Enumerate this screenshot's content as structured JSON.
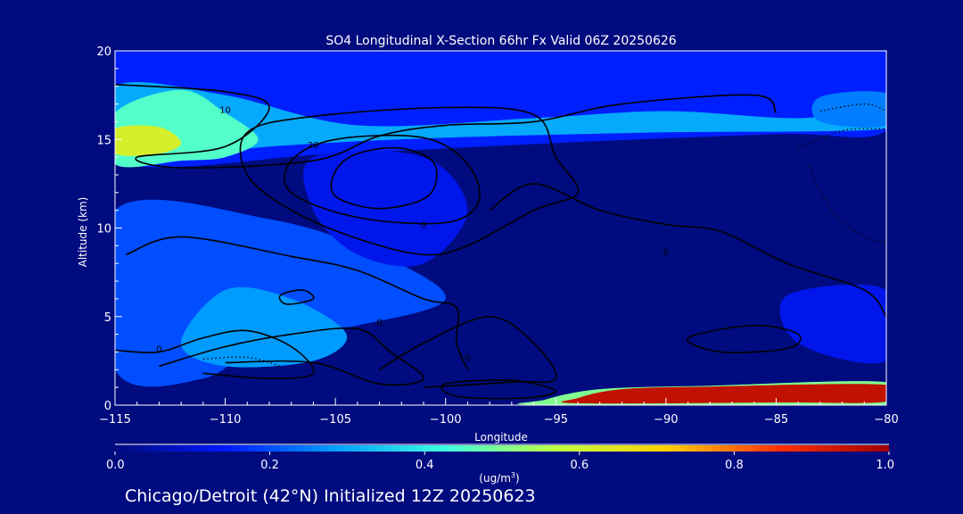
{
  "chart_data": {
    "type": "heatmap",
    "title": "SO4 Longitudinal X-Section 66hr  Fx Valid 06Z 20250626",
    "xlabel": "Longitude",
    "ylabel": "Altitude (km)",
    "xlim": [
      -115,
      -80
    ],
    "ylim": [
      0,
      20
    ],
    "x_ticks": [
      -115,
      -110,
      -105,
      -100,
      -95,
      -90,
      -85,
      -80
    ],
    "x_tick_labels": [
      "−115",
      "−110",
      "−105",
      "−100",
      "−95",
      "−90",
      "−85",
      "−80"
    ],
    "y_ticks": [
      0,
      5,
      10,
      15,
      20
    ],
    "y_tick_labels": [
      "0",
      "5",
      "10",
      "15",
      "20"
    ],
    "colorbar": {
      "min": 0.0,
      "max": 1.0,
      "ticks": [
        0.0,
        0.2,
        0.4,
        0.6,
        0.8,
        1.0
      ],
      "tick_labels": [
        "0.0",
        "0.2",
        "0.4",
        "0.6",
        "0.8",
        "1.0"
      ],
      "units_label": "(ug/m",
      "units_superscript": "3",
      "units_close": ")",
      "colors": [
        "#000b7f",
        "#0018ff",
        "#00a0ff",
        "#40ffe0",
        "#c0ff40",
        "#ffd000",
        "#ff3000",
        "#a00000"
      ]
    },
    "filled_regions": [
      {
        "name": "upper-band",
        "value": 0.15,
        "points": [
          [
            -115,
            20
          ],
          [
            -80,
            20
          ],
          [
            -80,
            15.5
          ],
          [
            -85,
            15.3
          ],
          [
            -95,
            14.8
          ],
          [
            -105,
            14.2
          ],
          [
            -115,
            13.8
          ]
        ]
      },
      {
        "name": "upper-jet",
        "value": 0.3,
        "points": [
          [
            -115,
            18
          ],
          [
            -110,
            17.5
          ],
          [
            -104,
            15.8
          ],
          [
            -96,
            16.2
          ],
          [
            -90,
            16.6
          ],
          [
            -84,
            16.2
          ],
          [
            -80,
            16.8
          ],
          [
            -80,
            15.6
          ],
          [
            -90,
            15.4
          ],
          [
            -100,
            15.1
          ],
          [
            -108,
            14.6
          ],
          [
            -115,
            13.8
          ]
        ]
      },
      {
        "name": "left-plume",
        "value": 0.45,
        "points": [
          [
            -115,
            16.5
          ],
          [
            -112,
            17.8
          ],
          [
            -110,
            16.5
          ],
          [
            -108.5,
            15
          ],
          [
            -110,
            14
          ],
          [
            -112,
            13.8
          ],
          [
            -115,
            13.6
          ]
        ]
      },
      {
        "name": "left-core",
        "value": 0.62,
        "points": [
          [
            -115,
            15.6
          ],
          [
            -113,
            15.7
          ],
          [
            -112,
            14.8
          ],
          [
            -113,
            14.2
          ],
          [
            -115,
            14.2
          ]
        ]
      },
      {
        "name": "right-upper",
        "value": 0.25,
        "points": [
          [
            -83,
            17.4
          ],
          [
            -80,
            17.6
          ],
          [
            -80,
            15.8
          ],
          [
            -83,
            16
          ]
        ]
      },
      {
        "name": "mid-tropo-left",
        "value": 0.2,
        "points": [
          [
            -115,
            11
          ],
          [
            -108,
            10.5
          ],
          [
            -103,
            8.5
          ],
          [
            -100,
            6
          ],
          [
            -104,
            4.5
          ],
          [
            -108,
            3.8
          ],
          [
            -111,
            1.5
          ],
          [
            -115,
            2
          ]
        ]
      },
      {
        "name": "low-left",
        "value": 0.28,
        "points": [
          [
            -110,
            6.5
          ],
          [
            -107,
            6
          ],
          [
            -104.5,
            4
          ],
          [
            -106,
            2.5
          ],
          [
            -110,
            2.2
          ],
          [
            -112,
            3.5
          ]
        ]
      },
      {
        "name": "center-column",
        "value": 0.12,
        "points": [
          [
            -106,
            14
          ],
          [
            -101,
            14
          ],
          [
            -99,
            11
          ],
          [
            -101,
            8
          ],
          [
            -104,
            8.5
          ],
          [
            -106,
            11
          ]
        ]
      },
      {
        "name": "right-lower",
        "value": 0.12,
        "points": [
          [
            -84.5,
            6.2
          ],
          [
            -80,
            6.5
          ],
          [
            -80,
            2.5
          ],
          [
            -84,
            3.5
          ]
        ]
      },
      {
        "name": "surface-layer-low",
        "value": 0.5,
        "points": [
          [
            -95.5,
            0.3
          ],
          [
            -93,
            0.9
          ],
          [
            -88,
            1.1
          ],
          [
            -80,
            1.3
          ],
          [
            -80,
            0
          ],
          [
            -95.5,
            0
          ]
        ]
      },
      {
        "name": "surface-layer-high",
        "value": 0.95,
        "points": [
          [
            -94,
            0.4
          ],
          [
            -92,
            0.9
          ],
          [
            -88,
            1.05
          ],
          [
            -80,
            1.15
          ],
          [
            -80,
            0.2
          ],
          [
            -85,
            0.15
          ],
          [
            -94,
            0.1
          ]
        ]
      }
    ],
    "contours": [
      {
        "label": "0",
        "label_at": [
          -101,
          10
        ],
        "points": [
          [
            -115,
            18.1
          ],
          [
            -110,
            17.7
          ],
          [
            -108,
            16.8
          ],
          [
            -110,
            14.6
          ],
          [
            -114,
            14.0
          ],
          [
            -112,
            13.4
          ],
          [
            -106,
            13.8
          ],
          [
            -103,
            15.2
          ],
          [
            -100,
            15.8
          ],
          [
            -96,
            16.0
          ],
          [
            -92,
            17.0
          ],
          [
            -86,
            17.5
          ],
          [
            -85,
            16.5
          ]
        ]
      },
      {
        "label": "10",
        "label_at": [
          -110,
          16.5
        ],
        "points": [
          [
            -109,
            15.4
          ],
          [
            -106,
            16.3
          ],
          [
            -100,
            16.8
          ],
          [
            -96,
            16.4
          ],
          [
            -95,
            14.0
          ],
          [
            -94,
            12.0
          ],
          [
            -96,
            11.0
          ],
          [
            -99,
            9.0
          ],
          [
            -101,
            8.5
          ],
          [
            -104,
            9.4
          ],
          [
            -107,
            11.0
          ],
          [
            -109,
            13.0
          ],
          [
            -109,
            15.4
          ]
        ]
      },
      {
        "label": "20",
        "label_at": [
          -106,
          14.5
        ],
        "points": [
          [
            -107,
            13.8
          ],
          [
            -105,
            15.0
          ],
          [
            -101,
            15.1
          ],
          [
            -99,
            13.6
          ],
          [
            -98.5,
            11.5
          ],
          [
            -100,
            10.3
          ],
          [
            -104,
            10.6
          ],
          [
            -107,
            12.0
          ],
          [
            -107,
            13.8
          ]
        ]
      },
      {
        "label": "",
        "label_at": [
          -103,
          14.3
        ],
        "points": [
          [
            -105,
            13.2
          ],
          [
            -104,
            14.2
          ],
          [
            -102,
            14.5
          ],
          [
            -100.5,
            13.6
          ],
          [
            -100.8,
            11.8
          ],
          [
            -103,
            11.1
          ],
          [
            -105,
            11.8
          ],
          [
            -105,
            13.2
          ]
        ]
      },
      {
        "label": "0",
        "label_at": [
          -90,
          8.5
        ],
        "points": [
          [
            -98,
            11.0
          ],
          [
            -96,
            12.5
          ],
          [
            -93,
            11.0
          ],
          [
            -90,
            10.2
          ],
          [
            -87.5,
            9.8
          ],
          [
            -84.5,
            8.0
          ],
          [
            -81,
            6.5
          ],
          [
            -80,
            5.0
          ]
        ]
      },
      {
        "label": "0",
        "label_at": [
          -103,
          4.5
        ],
        "points": [
          [
            -113,
            2.2
          ],
          [
            -110,
            3.3
          ],
          [
            -107,
            4.0
          ],
          [
            -104,
            4.3
          ],
          [
            -102.5,
            3.0
          ],
          [
            -101,
            1.5
          ],
          [
            -103,
            1.2
          ],
          [
            -106,
            2.4
          ],
          [
            -110,
            2.4
          ]
        ]
      },
      {
        "label": "0",
        "label_at": [
          -113,
          3
        ],
        "points": [
          [
            -115,
            3.1
          ],
          [
            -113,
            3.0
          ],
          [
            -111,
            3.8
          ],
          [
            -109,
            4.2
          ],
          [
            -107,
            3.3
          ],
          [
            -106,
            1.8
          ],
          [
            -108,
            1.5
          ],
          [
            -111,
            1.8
          ]
        ]
      },
      {
        "label": "",
        "label_at": [
          -97,
          0.9
        ],
        "points": [
          [
            -100,
            1.2
          ],
          [
            -97,
            1.4
          ],
          [
            -95,
            0.8
          ],
          [
            -96.5,
            0.4
          ],
          [
            -99.5,
            0.5
          ],
          [
            -100,
            1.2
          ]
        ]
      },
      {
        "label": "0",
        "label_at": [
          -99,
          2.5
        ],
        "points": [
          [
            -103,
            2.0
          ],
          [
            -101,
            3.5
          ],
          [
            -98,
            5.0
          ],
          [
            -96,
            3.5
          ],
          [
            -95,
            1.5
          ],
          [
            -97,
            1.3
          ],
          [
            -101,
            1.0
          ]
        ]
      },
      {
        "label": "",
        "label_at": [
          -106,
          5.7
        ],
        "points": [
          [
            -107.5,
            6.2
          ],
          [
            -106.5,
            6.5
          ],
          [
            -106,
            6.0
          ],
          [
            -107.2,
            5.7
          ],
          [
            -107.5,
            6.2
          ]
        ]
      },
      {
        "label": "",
        "label_at": [
          -86,
          5
        ],
        "points": [
          [
            -89,
            3.8
          ],
          [
            -86,
            4.5
          ],
          [
            -84,
            4.0
          ],
          [
            -84.5,
            3.2
          ],
          [
            -87.5,
            3.0
          ],
          [
            -89,
            3.8
          ]
        ]
      },
      {
        "label": "",
        "label_at": [
          -113,
          8
        ],
        "points": [
          [
            -114.5,
            8.5
          ],
          [
            -112,
            9.5
          ],
          [
            -107,
            8.4
          ],
          [
            -104,
            7.6
          ],
          [
            -101,
            6.0
          ],
          [
            -99.5,
            5.5
          ],
          [
            -99.5,
            3.5
          ],
          [
            -99,
            2.0
          ]
        ]
      }
    ],
    "dotted_contours": [
      {
        "points": [
          [
            -83,
            16.6
          ],
          [
            -81,
            17.0
          ],
          [
            -80,
            16.6
          ]
        ]
      },
      {
        "points": [
          [
            -84,
            14.5
          ],
          [
            -82,
            15.5
          ],
          [
            -80,
            15.6
          ]
        ]
      },
      {
        "points": [
          [
            -83.5,
            13.5
          ],
          [
            -82.5,
            11
          ],
          [
            -81,
            9.5
          ],
          [
            -80,
            9.2
          ]
        ]
      },
      {
        "points": [
          [
            -111,
            2.6
          ],
          [
            -109,
            2.7
          ],
          [
            -107.5,
            2.2
          ]
        ]
      }
    ]
  },
  "footer": {
    "caption": "Chicago/Detroit (42°N) Initialized 12Z 20250623"
  }
}
